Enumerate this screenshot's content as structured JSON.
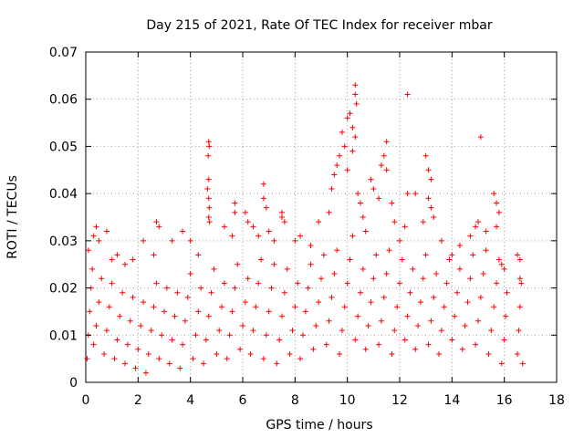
{
  "chart_data": {
    "type": "scatter",
    "title": "Day 215 of 2021, Rate Of TEC Index for receiver mbar",
    "xlabel": "GPS time / hours",
    "ylabel": "ROTI / TECUs",
    "xlim": [
      0,
      18
    ],
    "ylim": [
      0,
      0.07
    ],
    "xticks": [
      0,
      2,
      4,
      6,
      8,
      10,
      12,
      14,
      16,
      18
    ],
    "xtick_labels": [
      "0",
      "2",
      "4",
      "6",
      "8",
      "10",
      "12",
      "14",
      "16",
      "18"
    ],
    "yticks": [
      0,
      0.01,
      0.02,
      0.03,
      0.04,
      0.05,
      0.06,
      0.07
    ],
    "ytick_labels": [
      "0",
      "0.01",
      "0.02",
      "0.03",
      "0.04",
      "0.05",
      "0.06",
      "0.07"
    ],
    "grid": true,
    "marker": "+",
    "series": [
      {
        "name": "ROTI",
        "color": "#ff0000",
        "points": [
          [
            0.1,
            0.028
          ],
          [
            0.3,
            0.031
          ],
          [
            0.4,
            0.033
          ],
          [
            0.5,
            0.03
          ],
          [
            0.8,
            0.032
          ],
          [
            1.0,
            0.026
          ],
          [
            1.2,
            0.027
          ],
          [
            1.5,
            0.025
          ],
          [
            1.8,
            0.026
          ],
          [
            2.2,
            0.03
          ],
          [
            2.6,
            0.027
          ],
          [
            2.7,
            0.034
          ],
          [
            2.8,
            0.033
          ],
          [
            3.3,
            0.03
          ],
          [
            3.7,
            0.032
          ],
          [
            4.0,
            0.03
          ],
          [
            4.3,
            0.027
          ],
          [
            4.7,
            0.051
          ],
          [
            4.72,
            0.05
          ],
          [
            4.68,
            0.048
          ],
          [
            4.7,
            0.043
          ],
          [
            4.65,
            0.041
          ],
          [
            4.7,
            0.039
          ],
          [
            4.72,
            0.037
          ],
          [
            4.7,
            0.035
          ],
          [
            4.73,
            0.034
          ],
          [
            5.3,
            0.033
          ],
          [
            5.6,
            0.031
          ],
          [
            5.7,
            0.036
          ],
          [
            5.7,
            0.038
          ],
          [
            6.1,
            0.036
          ],
          [
            6.2,
            0.034
          ],
          [
            6.4,
            0.033
          ],
          [
            6.6,
            0.031
          ],
          [
            6.8,
            0.042
          ],
          [
            6.8,
            0.039
          ],
          [
            6.9,
            0.037
          ],
          [
            7.0,
            0.032
          ],
          [
            7.2,
            0.03
          ],
          [
            7.5,
            0.035
          ],
          [
            7.5,
            0.036
          ],
          [
            7.6,
            0.034
          ],
          [
            8.0,
            0.03
          ],
          [
            8.2,
            0.031
          ],
          [
            8.6,
            0.029
          ],
          [
            8.9,
            0.034
          ],
          [
            9.3,
            0.036
          ],
          [
            9.4,
            0.041
          ],
          [
            9.5,
            0.044
          ],
          [
            9.6,
            0.046
          ],
          [
            9.7,
            0.048
          ],
          [
            9.8,
            0.053
          ],
          [
            9.9,
            0.05
          ],
          [
            10.0,
            0.056
          ],
          [
            10.1,
            0.057
          ],
          [
            10.2,
            0.054
          ],
          [
            10.3,
            0.061
          ],
          [
            10.3,
            0.063
          ],
          [
            10.35,
            0.059
          ],
          [
            10.3,
            0.052
          ],
          [
            10.2,
            0.049
          ],
          [
            10.0,
            0.045
          ],
          [
            10.4,
            0.04
          ],
          [
            10.5,
            0.038
          ],
          [
            10.6,
            0.035
          ],
          [
            10.7,
            0.032
          ],
          [
            10.9,
            0.043
          ],
          [
            11.0,
            0.041
          ],
          [
            11.2,
            0.039
          ],
          [
            11.3,
            0.046
          ],
          [
            11.4,
            0.048
          ],
          [
            11.5,
            0.051
          ],
          [
            11.5,
            0.045
          ],
          [
            11.7,
            0.038
          ],
          [
            11.8,
            0.034
          ],
          [
            12.0,
            0.03
          ],
          [
            12.2,
            0.033
          ],
          [
            12.3,
            0.04
          ],
          [
            12.3,
            0.061
          ],
          [
            12.6,
            0.04
          ],
          [
            12.9,
            0.034
          ],
          [
            13.0,
            0.048
          ],
          [
            13.1,
            0.045
          ],
          [
            13.2,
            0.043
          ],
          [
            13.1,
            0.039
          ],
          [
            13.2,
            0.037
          ],
          [
            13.3,
            0.035
          ],
          [
            13.6,
            0.03
          ],
          [
            14.0,
            0.027
          ],
          [
            14.3,
            0.029
          ],
          [
            14.7,
            0.031
          ],
          [
            14.9,
            0.033
          ],
          [
            15.0,
            0.034
          ],
          [
            15.1,
            0.052
          ],
          [
            15.3,
            0.032
          ],
          [
            15.6,
            0.04
          ],
          [
            15.7,
            0.038
          ],
          [
            15.8,
            0.036
          ],
          [
            15.7,
            0.033
          ],
          [
            15.9,
            0.025
          ],
          [
            16.0,
            0.024
          ],
          [
            16.5,
            0.027
          ],
          [
            16.6,
            0.026
          ],
          [
            16.6,
            0.022
          ],
          [
            0.05,
            0.005
          ],
          [
            0.1,
            0.01
          ],
          [
            0.15,
            0.015
          ],
          [
            0.2,
            0.02
          ],
          [
            0.25,
            0.024
          ],
          [
            0.3,
            0.008
          ],
          [
            0.4,
            0.012
          ],
          [
            0.5,
            0.017
          ],
          [
            0.6,
            0.022
          ],
          [
            0.7,
            0.006
          ],
          [
            0.8,
            0.011
          ],
          [
            0.9,
            0.016
          ],
          [
            1.0,
            0.021
          ],
          [
            1.1,
            0.005
          ],
          [
            1.2,
            0.009
          ],
          [
            1.3,
            0.014
          ],
          [
            1.4,
            0.019
          ],
          [
            1.5,
            0.004
          ],
          [
            1.6,
            0.008
          ],
          [
            1.7,
            0.013
          ],
          [
            1.8,
            0.018
          ],
          [
            1.9,
            0.003
          ],
          [
            2.0,
            0.007
          ],
          [
            2.1,
            0.012
          ],
          [
            2.2,
            0.017
          ],
          [
            2.3,
            0.002
          ],
          [
            2.4,
            0.006
          ],
          [
            2.5,
            0.011
          ],
          [
            2.6,
            0.016
          ],
          [
            2.7,
            0.021
          ],
          [
            2.8,
            0.005
          ],
          [
            2.9,
            0.01
          ],
          [
            3.0,
            0.015
          ],
          [
            3.1,
            0.02
          ],
          [
            3.2,
            0.004
          ],
          [
            3.3,
            0.009
          ],
          [
            3.4,
            0.014
          ],
          [
            3.5,
            0.019
          ],
          [
            3.6,
            0.003
          ],
          [
            3.7,
            0.008
          ],
          [
            3.8,
            0.013
          ],
          [
            3.9,
            0.018
          ],
          [
            4.0,
            0.023
          ],
          [
            4.1,
            0.005
          ],
          [
            4.2,
            0.01
          ],
          [
            4.3,
            0.015
          ],
          [
            4.4,
            0.02
          ],
          [
            4.5,
            0.004
          ],
          [
            4.6,
            0.009
          ],
          [
            4.7,
            0.014
          ],
          [
            4.8,
            0.019
          ],
          [
            4.9,
            0.024
          ],
          [
            5.0,
            0.006
          ],
          [
            5.1,
            0.011
          ],
          [
            5.2,
            0.016
          ],
          [
            5.3,
            0.021
          ],
          [
            5.4,
            0.005
          ],
          [
            5.5,
            0.01
          ],
          [
            5.6,
            0.015
          ],
          [
            5.7,
            0.02
          ],
          [
            5.8,
            0.025
          ],
          [
            5.9,
            0.007
          ],
          [
            6.0,
            0.012
          ],
          [
            6.1,
            0.017
          ],
          [
            6.2,
            0.022
          ],
          [
            6.3,
            0.006
          ],
          [
            6.4,
            0.011
          ],
          [
            6.5,
            0.016
          ],
          [
            6.6,
            0.021
          ],
          [
            6.7,
            0.026
          ],
          [
            6.8,
            0.005
          ],
          [
            6.9,
            0.01
          ],
          [
            7.0,
            0.015
          ],
          [
            7.1,
            0.02
          ],
          [
            7.2,
            0.025
          ],
          [
            7.3,
            0.004
          ],
          [
            7.4,
            0.009
          ],
          [
            7.5,
            0.014
          ],
          [
            7.6,
            0.019
          ],
          [
            7.7,
            0.024
          ],
          [
            7.8,
            0.006
          ],
          [
            7.9,
            0.011
          ],
          [
            8.0,
            0.016
          ],
          [
            8.1,
            0.021
          ],
          [
            8.2,
            0.005
          ],
          [
            8.3,
            0.01
          ],
          [
            8.4,
            0.015
          ],
          [
            8.5,
            0.02
          ],
          [
            8.6,
            0.025
          ],
          [
            8.7,
            0.007
          ],
          [
            8.8,
            0.012
          ],
          [
            8.9,
            0.017
          ],
          [
            9.0,
            0.022
          ],
          [
            9.1,
            0.027
          ],
          [
            9.2,
            0.008
          ],
          [
            9.3,
            0.013
          ],
          [
            9.4,
            0.018
          ],
          [
            9.5,
            0.023
          ],
          [
            9.6,
            0.028
          ],
          [
            9.7,
            0.006
          ],
          [
            9.8,
            0.011
          ],
          [
            9.9,
            0.016
          ],
          [
            10.0,
            0.021
          ],
          [
            10.1,
            0.026
          ],
          [
            10.2,
            0.031
          ],
          [
            10.3,
            0.009
          ],
          [
            10.4,
            0.014
          ],
          [
            10.5,
            0.019
          ],
          [
            10.6,
            0.024
          ],
          [
            10.7,
            0.007
          ],
          [
            10.8,
            0.012
          ],
          [
            10.9,
            0.017
          ],
          [
            11.0,
            0.022
          ],
          [
            11.1,
            0.027
          ],
          [
            11.2,
            0.008
          ],
          [
            11.3,
            0.013
          ],
          [
            11.4,
            0.018
          ],
          [
            11.5,
            0.023
          ],
          [
            11.6,
            0.028
          ],
          [
            11.7,
            0.006
          ],
          [
            11.8,
            0.011
          ],
          [
            11.9,
            0.016
          ],
          [
            12.0,
            0.021
          ],
          [
            12.1,
            0.026
          ],
          [
            12.2,
            0.009
          ],
          [
            12.3,
            0.014
          ],
          [
            12.4,
            0.019
          ],
          [
            12.5,
            0.024
          ],
          [
            12.6,
            0.007
          ],
          [
            12.7,
            0.012
          ],
          [
            12.8,
            0.017
          ],
          [
            12.9,
            0.022
          ],
          [
            13.0,
            0.027
          ],
          [
            13.1,
            0.008
          ],
          [
            13.2,
            0.013
          ],
          [
            13.3,
            0.018
          ],
          [
            13.4,
            0.023
          ],
          [
            13.5,
            0.006
          ],
          [
            13.6,
            0.011
          ],
          [
            13.7,
            0.016
          ],
          [
            13.8,
            0.021
          ],
          [
            13.9,
            0.026
          ],
          [
            14.0,
            0.009
          ],
          [
            14.1,
            0.014
          ],
          [
            14.2,
            0.019
          ],
          [
            14.3,
            0.024
          ],
          [
            14.4,
            0.007
          ],
          [
            14.5,
            0.012
          ],
          [
            14.6,
            0.017
          ],
          [
            14.7,
            0.022
          ],
          [
            14.8,
            0.027
          ],
          [
            14.9,
            0.008
          ],
          [
            15.0,
            0.013
          ],
          [
            15.1,
            0.018
          ],
          [
            15.2,
            0.023
          ],
          [
            15.3,
            0.028
          ],
          [
            15.4,
            0.006
          ],
          [
            15.5,
            0.011
          ],
          [
            15.6,
            0.016
          ],
          [
            15.7,
            0.021
          ],
          [
            15.8,
            0.026
          ],
          [
            15.9,
            0.004
          ],
          [
            16.0,
            0.009
          ],
          [
            16.05,
            0.014
          ],
          [
            16.1,
            0.019
          ],
          [
            16.5,
            0.006
          ],
          [
            16.55,
            0.011
          ],
          [
            16.6,
            0.016
          ],
          [
            16.65,
            0.021
          ],
          [
            16.7,
            0.004
          ]
        ]
      }
    ]
  }
}
